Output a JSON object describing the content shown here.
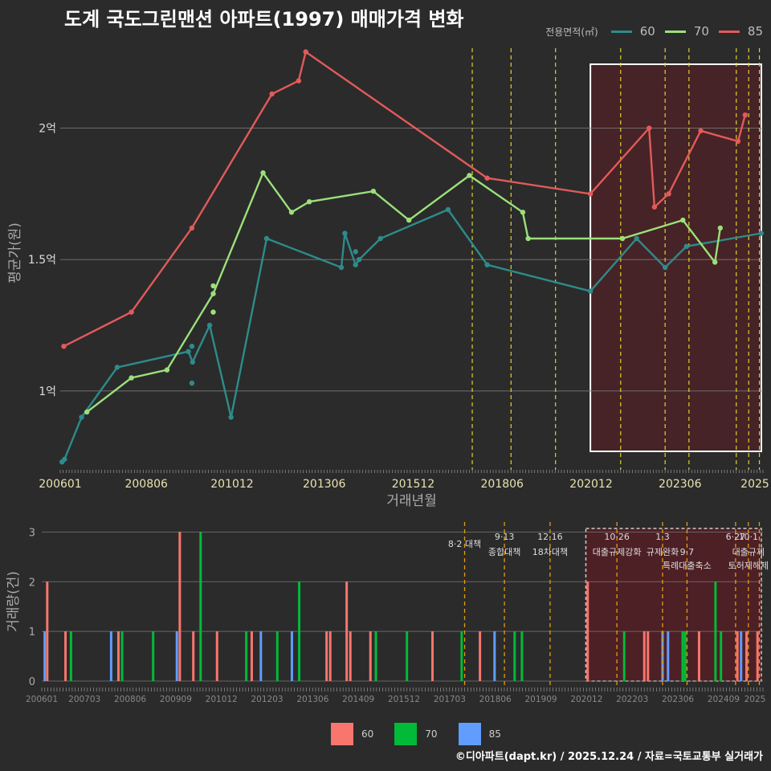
{
  "title": "도계 국도그린맨션 아파트(1997) 매매가격 변화",
  "legend": {
    "title": "전용면적(㎡)",
    "items": [
      {
        "label": "60",
        "color": "#2e8b8b"
      },
      {
        "label": "70",
        "color": "#9be07a"
      },
      {
        "label": "85",
        "color": "#e35a5a"
      }
    ]
  },
  "footer": "©디아파트(dapt.kr) / 2025.12.24 / 자료=국토교통부 실거래가",
  "chart_data": [
    {
      "type": "line",
      "title": "도계 국도그린맨션 아파트(1997) 매매가격 변화",
      "xlabel": "거래년월",
      "ylabel": "평균가(원)",
      "xlim": [
        2006.0,
        2025.75
      ],
      "ylim": [
        0.7,
        2.35
      ],
      "y_unit": "억",
      "x_ticks": [
        {
          "x": 2006.0,
          "label": "200601"
        },
        {
          "x": 2008.42,
          "label": "200806"
        },
        {
          "x": 2010.83,
          "label": "201012"
        },
        {
          "x": 2013.42,
          "label": "201306"
        },
        {
          "x": 2015.92,
          "label": "201512"
        },
        {
          "x": 2018.42,
          "label": "201806"
        },
        {
          "x": 2020.92,
          "label": "202012"
        },
        {
          "x": 2023.42,
          "label": "202306"
        },
        {
          "x": 2025.92,
          "label": "2025"
        }
      ],
      "y_ticks": [
        {
          "y": 1.0,
          "label": "1억"
        },
        {
          "y": 1.5,
          "label": "1.5억"
        },
        {
          "y": 2.0,
          "label": "2억"
        }
      ],
      "series": [
        {
          "name": "60",
          "color": "#2e8b8b",
          "points": [
            [
              2006.05,
              0.73
            ],
            [
              2006.12,
              0.74
            ],
            [
              2006.6,
              0.9
            ],
            [
              2007.6,
              1.09
            ],
            [
              2009.6,
              1.15
            ],
            [
              2009.72,
              1.11
            ],
            [
              2010.2,
              1.25
            ],
            [
              2010.8,
              0.9
            ],
            [
              2011.8,
              1.58
            ],
            [
              2013.9,
              1.47
            ],
            [
              2014.0,
              1.6
            ],
            [
              2014.3,
              1.48
            ],
            [
              2014.4,
              1.5
            ],
            [
              2015.0,
              1.58
            ],
            [
              2016.9,
              1.69
            ],
            [
              2018.0,
              1.48
            ],
            [
              2020.9,
              1.38
            ],
            [
              2022.2,
              1.58
            ],
            [
              2023.0,
              1.47
            ],
            [
              2023.6,
              1.55
            ],
            [
              2025.7,
              1.6
            ]
          ],
          "extra_points": [
            [
              2009.7,
              1.03
            ],
            [
              2009.7,
              1.17
            ],
            [
              2014.3,
              1.53
            ]
          ]
        },
        {
          "name": "70",
          "color": "#9be07a",
          "points": [
            [
              2006.75,
              0.92
            ],
            [
              2008.0,
              1.05
            ],
            [
              2009.0,
              1.08
            ],
            [
              2010.3,
              1.37
            ],
            [
              2011.7,
              1.83
            ],
            [
              2012.5,
              1.68
            ],
            [
              2013.0,
              1.72
            ],
            [
              2014.8,
              1.76
            ],
            [
              2015.8,
              1.65
            ],
            [
              2017.5,
              1.82
            ],
            [
              2019.0,
              1.68
            ],
            [
              2019.15,
              1.58
            ],
            [
              2021.8,
              1.58
            ],
            [
              2023.5,
              1.65
            ],
            [
              2024.4,
              1.49
            ],
            [
              2024.55,
              1.62
            ]
          ],
          "extra_points": [
            [
              2010.3,
              1.4
            ],
            [
              2010.3,
              1.3
            ]
          ]
        },
        {
          "name": "85",
          "color": "#e35a5a",
          "points": [
            [
              2006.1,
              1.17
            ],
            [
              2008.0,
              1.3
            ],
            [
              2009.7,
              1.62
            ],
            [
              2011.95,
              2.13
            ],
            [
              2012.7,
              2.18
            ],
            [
              2012.9,
              2.29
            ],
            [
              2018.0,
              1.81
            ],
            [
              2020.9,
              1.75
            ],
            [
              2022.55,
              2.0
            ],
            [
              2022.7,
              1.7
            ],
            [
              2023.1,
              1.75
            ],
            [
              2024.0,
              1.99
            ],
            [
              2025.05,
              1.95
            ],
            [
              2025.25,
              2.05
            ]
          ]
        }
      ],
      "policy_lines": [
        2017.58,
        2018.67,
        2019.92,
        2021.75,
        2023.0,
        2023.67,
        2025.0,
        2025.35,
        2025.65
      ],
      "highlight_range": [
        2020.9,
        2025.92
      ]
    },
    {
      "type": "bar",
      "xlabel": "",
      "ylabel": "거래량(건)",
      "xlim": [
        2006.0,
        2025.75
      ],
      "ylim": [
        0,
        3.2
      ],
      "y_ticks": [
        0,
        1,
        2,
        3
      ],
      "x_tick_labels": [
        {
          "x": 2006.0,
          "label": "200601"
        },
        {
          "x": 2007.17,
          "label": "200703"
        },
        {
          "x": 2008.42,
          "label": "200806"
        },
        {
          "x": 2009.67,
          "label": "200909"
        },
        {
          "x": 2010.92,
          "label": "201012"
        },
        {
          "x": 2012.17,
          "label": "201203"
        },
        {
          "x": 2013.42,
          "label": "201306"
        },
        {
          "x": 2014.67,
          "label": "201409"
        },
        {
          "x": 2015.92,
          "label": "201512"
        },
        {
          "x": 2017.17,
          "label": "201703"
        },
        {
          "x": 2018.42,
          "label": "201806"
        },
        {
          "x": 2019.67,
          "label": "201909"
        },
        {
          "x": 2020.92,
          "label": "202012"
        },
        {
          "x": 2022.17,
          "label": "202203"
        },
        {
          "x": 2023.42,
          "label": "202306"
        },
        {
          "x": 2024.67,
          "label": "202409"
        },
        {
          "x": 2025.92,
          "label": "2025"
        }
      ],
      "series_colors": {
        "60": "#f8766d",
        "70": "#00ba38",
        "85": "#619cff"
      },
      "bars": [
        {
          "x": 2006.08,
          "v": 1,
          "s": "85"
        },
        {
          "x": 2006.15,
          "v": 2,
          "s": "60"
        },
        {
          "x": 2006.65,
          "v": 1,
          "s": "60"
        },
        {
          "x": 2006.8,
          "v": 1,
          "s": "70"
        },
        {
          "x": 2007.9,
          "v": 1,
          "s": "85"
        },
        {
          "x": 2008.1,
          "v": 1,
          "s": "60"
        },
        {
          "x": 2008.2,
          "v": 1,
          "s": "70"
        },
        {
          "x": 2009.05,
          "v": 1,
          "s": "70"
        },
        {
          "x": 2009.7,
          "v": 1,
          "s": "85"
        },
        {
          "x": 2009.78,
          "v": 3,
          "s": "60"
        },
        {
          "x": 2010.15,
          "v": 1,
          "s": "60"
        },
        {
          "x": 2010.35,
          "v": 3,
          "s": "70"
        },
        {
          "x": 2010.8,
          "v": 1,
          "s": "60"
        },
        {
          "x": 2011.6,
          "v": 1,
          "s": "70"
        },
        {
          "x": 2011.75,
          "v": 1,
          "s": "60"
        },
        {
          "x": 2012.0,
          "v": 1,
          "s": "85"
        },
        {
          "x": 2012.45,
          "v": 1,
          "s": "70"
        },
        {
          "x": 2012.85,
          "v": 1,
          "s": "85"
        },
        {
          "x": 2013.05,
          "v": 2,
          "s": "70"
        },
        {
          "x": 2013.8,
          "v": 1,
          "s": "60"
        },
        {
          "x": 2013.9,
          "v": 1,
          "s": "60"
        },
        {
          "x": 2014.35,
          "v": 2,
          "s": "60"
        },
        {
          "x": 2014.45,
          "v": 1,
          "s": "60"
        },
        {
          "x": 2015.0,
          "v": 1,
          "s": "60"
        },
        {
          "x": 2015.15,
          "v": 1,
          "s": "70"
        },
        {
          "x": 2016.0,
          "v": 1,
          "s": "70"
        },
        {
          "x": 2016.7,
          "v": 1,
          "s": "60"
        },
        {
          "x": 2017.5,
          "v": 1,
          "s": "70"
        },
        {
          "x": 2018.0,
          "v": 1,
          "s": "60"
        },
        {
          "x": 2018.4,
          "v": 1,
          "s": "85"
        },
        {
          "x": 2018.95,
          "v": 1,
          "s": "70"
        },
        {
          "x": 2019.15,
          "v": 1,
          "s": "70"
        },
        {
          "x": 2020.95,
          "v": 2,
          "s": "60"
        },
        {
          "x": 2021.95,
          "v": 1,
          "s": "70"
        },
        {
          "x": 2022.5,
          "v": 1,
          "s": "60"
        },
        {
          "x": 2022.6,
          "v": 1,
          "s": "60"
        },
        {
          "x": 2023.0,
          "v": 1,
          "s": "85"
        },
        {
          "x": 2023.15,
          "v": 1,
          "s": "85"
        },
        {
          "x": 2023.55,
          "v": 1,
          "s": "70"
        },
        {
          "x": 2023.62,
          "v": 1,
          "s": "70"
        },
        {
          "x": 2024.0,
          "v": 1,
          "s": "60"
        },
        {
          "x": 2024.45,
          "v": 2,
          "s": "70"
        },
        {
          "x": 2024.6,
          "v": 1,
          "s": "70"
        },
        {
          "x": 2025.05,
          "v": 1,
          "s": "60"
        },
        {
          "x": 2025.15,
          "v": 1,
          "s": "85"
        },
        {
          "x": 2025.3,
          "v": 1,
          "s": "60"
        },
        {
          "x": 2025.6,
          "v": 1,
          "s": "60"
        }
      ],
      "policy_lines": [
        2017.58,
        2018.67,
        2019.92,
        2021.75,
        2023.0,
        2023.67,
        2025.0,
        2025.35,
        2025.65
      ],
      "policy_labels": [
        {
          "x": 2017.58,
          "text": "8·2 대책",
          "row": 1
        },
        {
          "x": 2018.67,
          "text": "9·13",
          "row": 0
        },
        {
          "x": 2018.67,
          "text": "종합대책",
          "row": 2
        },
        {
          "x": 2019.92,
          "text": "12·16",
          "row": 0
        },
        {
          "x": 2019.92,
          "text": "18차대책",
          "row": 2
        },
        {
          "x": 2021.75,
          "text": "10·26",
          "row": 0
        },
        {
          "x": 2021.75,
          "text": "대출규제강화",
          "row": 2
        },
        {
          "x": 2023.0,
          "text": "1·3",
          "row": 0
        },
        {
          "x": 2023.0,
          "text": "규제완화",
          "row": 2
        },
        {
          "x": 2023.67,
          "text": "9·7",
          "row": 2
        },
        {
          "x": 2023.67,
          "text": "특례대출축소",
          "row": 3
        },
        {
          "x": 2025.0,
          "text": "6·27",
          "row": 0
        },
        {
          "x": 2025.35,
          "text": "10·1",
          "row": 0
        },
        {
          "x": 2025.35,
          "text": "대출규제",
          "row": 2
        },
        {
          "x": 2025.35,
          "text": "토허제해제",
          "row": 3
        }
      ],
      "highlight_range": [
        2020.9,
        2025.92
      ]
    }
  ],
  "vol_legend": [
    {
      "label": "60",
      "color": "#f8766d"
    },
    {
      "label": "70",
      "color": "#00ba38"
    },
    {
      "label": "85",
      "color": "#619cff"
    }
  ]
}
